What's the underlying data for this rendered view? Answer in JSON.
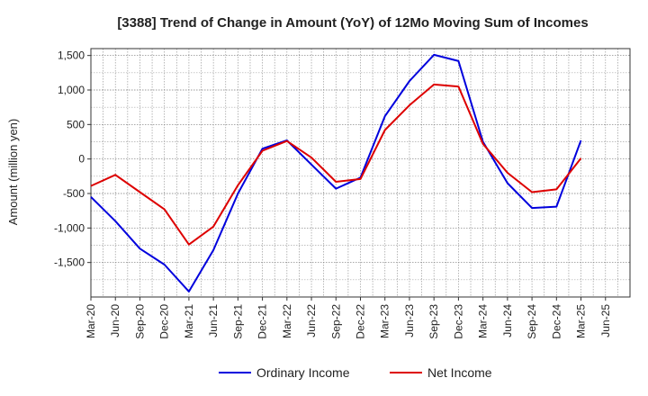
{
  "chart_data": {
    "type": "line",
    "title": "[3388]  Trend of Change in Amount (YoY) of 12Mo Moving Sum of Incomes",
    "ylabel": "Amount (million yen)",
    "xlabel": "",
    "categories": [
      "Mar-20",
      "Jun-20",
      "Sep-20",
      "Dec-20",
      "Mar-21",
      "Jun-21",
      "Sep-21",
      "Dec-21",
      "Mar-22",
      "Jun-22",
      "Sep-22",
      "Dec-22",
      "Mar-23",
      "Jun-23",
      "Sep-23",
      "Dec-23",
      "Mar-24",
      "Jun-24",
      "Sep-24",
      "Dec-24",
      "Mar-25",
      "Jun-25"
    ],
    "ylim": [
      -2000,
      1600
    ],
    "yticks": [
      1500,
      1000,
      500,
      0,
      -500,
      -1000,
      -1500
    ],
    "ytick_labels": [
      "1,500",
      "1,000",
      "500",
      "0",
      "-500",
      "-1,000",
      "-1,500"
    ],
    "grid": true,
    "legend_position": "bottom-center",
    "series": [
      {
        "name": "Ordinary Income",
        "color": "#0000dd",
        "values": [
          -550,
          -900,
          -1300,
          -1530,
          -1920,
          -1320,
          -500,
          150,
          270,
          -80,
          -430,
          -270,
          620,
          1130,
          1510,
          1420,
          250,
          -350,
          -710,
          -690,
          270,
          null
        ]
      },
      {
        "name": "Net Income",
        "color": "#dd0000",
        "values": [
          -390,
          -230,
          -480,
          -730,
          -1240,
          -980,
          -380,
          120,
          260,
          20,
          -330,
          -290,
          420,
          780,
          1080,
          1050,
          220,
          -200,
          -480,
          -440,
          10,
          null
        ]
      }
    ]
  }
}
